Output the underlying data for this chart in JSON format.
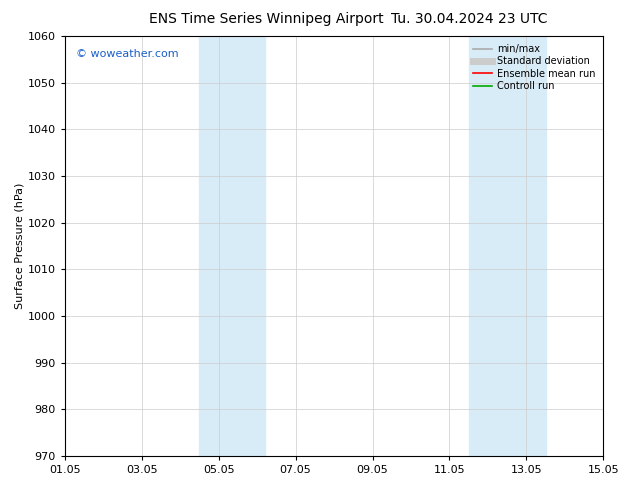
{
  "title": "ENS Time Series Winnipeg Airport",
  "title2": "Tu. 30.04.2024 23 UTC",
  "ylabel": "Surface Pressure (hPa)",
  "ylim": [
    970,
    1060
  ],
  "yticks": [
    970,
    980,
    990,
    1000,
    1010,
    1020,
    1030,
    1040,
    1050,
    1060
  ],
  "xticks": [
    "01.05",
    "03.05",
    "05.05",
    "07.05",
    "09.05",
    "11.05",
    "13.05",
    "15.05"
  ],
  "xtick_positions": [
    0,
    2,
    4,
    6,
    8,
    10,
    12,
    14
  ],
  "shaded_bands": [
    {
      "x_start": 3.5,
      "x_end": 5.2
    },
    {
      "x_start": 10.5,
      "x_end": 12.5
    }
  ],
  "shaded_color": "#d8ecf8",
  "watermark": "© woweather.com",
  "watermark_color": "#1a5fc8",
  "legend_entries": [
    {
      "label": "min/max",
      "color": "#aaaaaa",
      "lw": 1.2
    },
    {
      "label": "Standard deviation",
      "color": "#cccccc",
      "lw": 5
    },
    {
      "label": "Ensemble mean run",
      "color": "#ff0000",
      "lw": 1.2
    },
    {
      "label": "Controll run",
      "color": "#00aa00",
      "lw": 1.2
    }
  ],
  "bg_color": "#ffffff",
  "grid_color": "#cccccc",
  "title_fontsize": 10,
  "title2_fontsize": 10,
  "axis_fontsize": 8,
  "tick_fontsize": 8,
  "watermark_fontsize": 8,
  "legend_fontsize": 7
}
